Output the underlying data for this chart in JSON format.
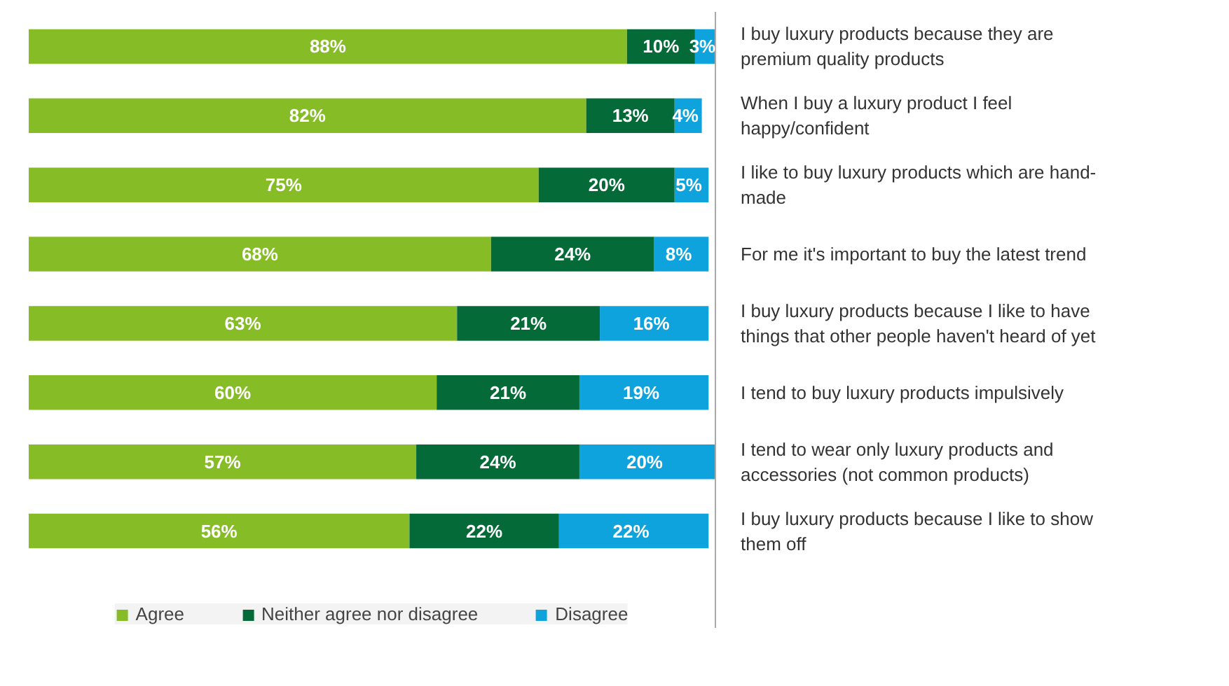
{
  "chart_data": {
    "type": "bar",
    "orientation": "horizontal",
    "stacked": true,
    "legend": "bottom",
    "grid": false,
    "tick_labels": "y",
    "categories": [
      "I buy luxury products because they are premium quality products",
      "When I buy a luxury product I feel happy/confident",
      "I like to buy luxury products which are hand-made",
      "For me it's important to buy the latest trend",
      "I buy luxury products because I like to have things that other people haven't heard of yet",
      "I tend to buy luxury products impulsively",
      "I tend to wear only luxury products and accessories (not common products)",
      "I buy luxury products because I like to show them off"
    ],
    "series": [
      {
        "name": "Agree",
        "color": "#86bc25",
        "values": [
          88,
          82,
          75,
          68,
          63,
          60,
          57,
          56
        ],
        "value_labels": [
          "88%",
          "82%",
          "75%",
          "68%",
          "63%",
          "60%",
          "57%",
          "56%"
        ]
      },
      {
        "name": "Neither agree nor disagree",
        "color": "#046a38",
        "values": [
          10,
          13,
          20,
          24,
          21,
          21,
          24,
          22
        ],
        "value_labels": [
          "10%",
          "13%",
          "20%",
          "24%",
          "21%",
          "21%",
          "24%",
          "22%"
        ]
      },
      {
        "name": "Disagree",
        "color": "#0fa3de",
        "values": [
          3,
          4,
          5,
          8,
          16,
          19,
          20,
          22
        ],
        "value_labels": [
          "3%",
          "4%",
          "5%",
          "8%",
          "16%",
          "19%",
          "20%",
          "22%"
        ]
      }
    ]
  }
}
